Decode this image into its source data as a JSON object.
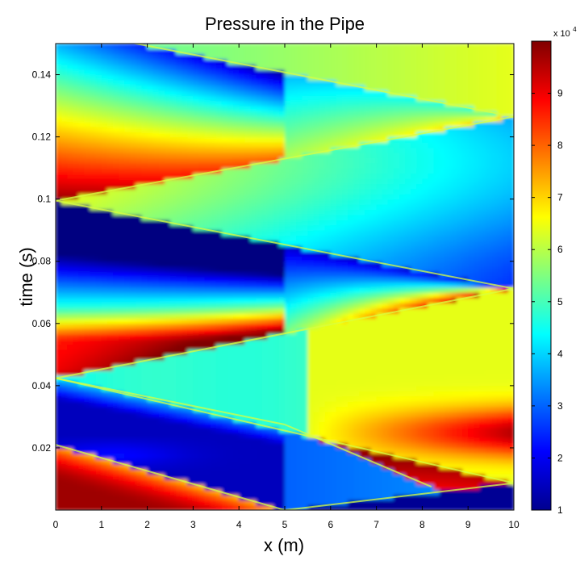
{
  "chart_data": {
    "type": "heatmap",
    "title": "Pressure in the Pipe",
    "xlabel": "x (m)",
    "ylabel": "time (s)",
    "xlim": [
      0,
      10
    ],
    "ylim": [
      0,
      0.15
    ],
    "x_ticks": [
      "0",
      "1",
      "2",
      "3",
      "4",
      "5",
      "6",
      "7",
      "8",
      "9",
      "10"
    ],
    "x_tick_values": [
      0,
      1,
      2,
      3,
      4,
      5,
      6,
      7,
      8,
      9,
      10
    ],
    "y_ticks": [
      "0.02",
      "0.04",
      "0.06",
      "0.08",
      "0.1",
      "0.12",
      "0.14"
    ],
    "y_tick_values": [
      0.02,
      0.04,
      0.06,
      0.08,
      0.1,
      0.12,
      0.14
    ],
    "colorbar": {
      "colormap": "jet",
      "range": [
        1,
        10
      ],
      "ticks": [
        "1",
        "2",
        "3",
        "4",
        "5",
        "6",
        "7",
        "8",
        "9"
      ],
      "tick_values": [
        1,
        2,
        3,
        4,
        5,
        6,
        7,
        8,
        9
      ],
      "multiplier_base": "x 10",
      "multiplier_exponent": "4"
    },
    "wave_fronts": [
      {
        "x": [
          5,
          10
        ],
        "t": [
          0,
          0.0087
        ]
      },
      {
        "x": [
          10,
          0
        ],
        "t": [
          0.0087,
          0.0424
        ]
      },
      {
        "x": [
          0,
          10
        ],
        "t": [
          0.0424,
          0.0712
        ]
      },
      {
        "x": [
          10,
          0
        ],
        "t": [
          0.0712,
          0.0995
        ]
      },
      {
        "x": [
          0,
          10
        ],
        "t": [
          0.0995,
          0.1265
        ]
      },
      {
        "x": [
          10,
          0
        ],
        "t": [
          0.1265,
          0.155
        ]
      },
      {
        "x": [
          0,
          5
        ],
        "t": [
          0.0424,
          0.0275
        ]
      },
      {
        "x": [
          5,
          8.2
        ],
        "t": [
          0.0275,
          0.0075
        ]
      },
      {
        "x": [
          0,
          5
        ],
        "t": [
          0.021,
          0.0
        ]
      }
    ]
  }
}
